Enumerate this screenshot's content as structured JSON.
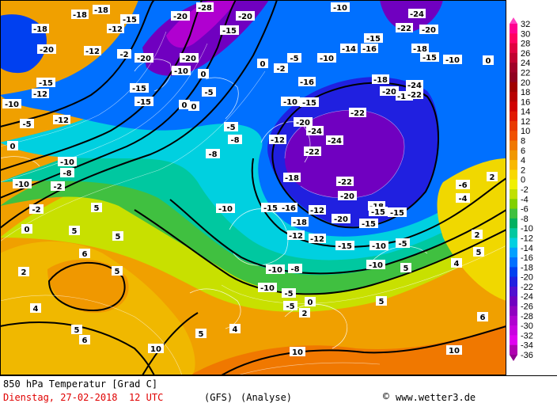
{
  "map": {
    "contour_labels": [
      {
        "t": "-18"
      },
      {
        "t": "-18"
      },
      {
        "t": "-15"
      },
      {
        "t": "-12"
      },
      {
        "t": "-20"
      },
      {
        "t": "-18"
      },
      {
        "t": "-28"
      },
      {
        "t": "-20"
      },
      {
        "t": "-10"
      },
      {
        "t": "-24"
      },
      {
        "t": "-22"
      },
      {
        "t": "-20"
      },
      {
        "t": "-18"
      },
      {
        "t": "-20"
      },
      {
        "t": "-15"
      },
      {
        "t": "-12"
      },
      {
        "t": "-15"
      },
      {
        "t": "-20"
      },
      {
        "t": "-12"
      },
      {
        "t": "-15"
      },
      {
        "t": "-20"
      },
      {
        "t": "-10"
      },
      {
        "t": "-5"
      },
      {
        "t": "-14"
      },
      {
        "t": "-16"
      },
      {
        "t": "-15"
      },
      {
        "t": "-10"
      },
      {
        "t": "-18"
      },
      {
        "t": "-15"
      },
      {
        "t": "-10"
      },
      {
        "t": "-2"
      },
      {
        "t": "0"
      },
      {
        "t": "-10"
      },
      {
        "t": "-15"
      },
      {
        "t": "-16"
      },
      {
        "t": "-22"
      },
      {
        "t": "-20"
      },
      {
        "t": "-18"
      },
      {
        "t": "-24"
      },
      {
        "t": "-22"
      },
      {
        "t": "-15"
      },
      {
        "t": "-12"
      },
      {
        "t": "-10"
      },
      {
        "t": "-5"
      },
      {
        "t": "-12"
      },
      {
        "t": "-8"
      },
      {
        "t": "0"
      },
      {
        "t": "-5"
      },
      {
        "t": "-10"
      },
      {
        "t": "-20"
      },
      {
        "t": "-24"
      },
      {
        "t": "-22"
      },
      {
        "t": "-24"
      },
      {
        "t": "-22"
      },
      {
        "t": "-18"
      },
      {
        "t": "-18"
      },
      {
        "t": "-20"
      },
      {
        "t": "-15"
      },
      {
        "t": "-15"
      },
      {
        "t": "-16"
      },
      {
        "t": "-18"
      },
      {
        "t": "-20"
      },
      {
        "t": "-15"
      },
      {
        "t": "-12"
      },
      {
        "t": "-15"
      },
      {
        "t": "-10"
      },
      {
        "t": "-10"
      },
      {
        "t": "-5"
      },
      {
        "t": "-8"
      },
      {
        "t": "-6"
      },
      {
        "t": "-4"
      },
      {
        "t": "-2"
      },
      {
        "t": "0"
      },
      {
        "t": "0"
      },
      {
        "t": "2"
      },
      {
        "t": "4"
      },
      {
        "t": "5"
      },
      {
        "t": "5"
      },
      {
        "t": "5"
      },
      {
        "t": "6"
      },
      {
        "t": "5"
      },
      {
        "t": "5"
      },
      {
        "t": "5"
      },
      {
        "t": "10"
      },
      {
        "t": "10"
      },
      {
        "t": "10"
      },
      {
        "t": "5"
      },
      {
        "t": "2"
      },
      {
        "t": "4"
      },
      {
        "t": "6"
      },
      {
        "t": "-2"
      },
      {
        "t": "-5"
      },
      {
        "t": "0"
      },
      {
        "t": "0"
      },
      {
        "t": "-10"
      },
      {
        "t": "-12"
      },
      {
        "t": "-8"
      },
      {
        "t": "-10"
      },
      {
        "t": "-5"
      },
      {
        "t": "-10"
      },
      {
        "t": "-15"
      },
      {
        "t": "-12"
      },
      {
        "t": "-8"
      },
      {
        "t": "-2"
      },
      {
        "t": "0"
      },
      {
        "t": "0"
      },
      {
        "t": "5"
      },
      {
        "t": "-5"
      },
      {
        "t": "-10"
      },
      {
        "t": "2"
      },
      {
        "t": "5"
      },
      {
        "t": "4"
      },
      {
        "t": "6"
      },
      {
        "t": "2"
      }
    ]
  },
  "scale": {
    "ticks": [
      "32",
      "30",
      "28",
      "26",
      "24",
      "22",
      "20",
      "18",
      "16",
      "14",
      "12",
      "10",
      "8",
      "6",
      "4",
      "2",
      "0",
      "-2",
      "-4",
      "-6",
      "-8",
      "-10",
      "-12",
      "-14",
      "-16",
      "-18",
      "-20",
      "-22",
      "-24",
      "-26",
      "-28",
      "-30",
      "-32",
      "-34",
      "-36"
    ],
    "colors": [
      "#ff0090",
      "#ff0060",
      "#e00040",
      "#c00030",
      "#a00028",
      "#900020",
      "#a00000",
      "#b80000",
      "#d00000",
      "#e01800",
      "#e83800",
      "#f05000",
      "#f07800",
      "#f09800",
      "#f8b800",
      "#f8d800",
      "#f0f000",
      "#c0e000",
      "#80d000",
      "#40c040",
      "#00b060",
      "#00c8a0",
      "#00d0e0",
      "#00a0ff",
      "#0070ff",
      "#0040f0",
      "#2020e0",
      "#5010d0",
      "#7000c0",
      "#9000c0",
      "#b000d0",
      "#c800e0",
      "#e000f0",
      "#b000b0"
    ]
  },
  "footer": {
    "line1": "850 hPa Temperatur [Grad C]",
    "line2_date": "Dienstag, 27-02-2018  12 UTC",
    "model": "(GFS)",
    "analyse": "(Analyse)",
    "credit": "www.wetter3.de"
  }
}
